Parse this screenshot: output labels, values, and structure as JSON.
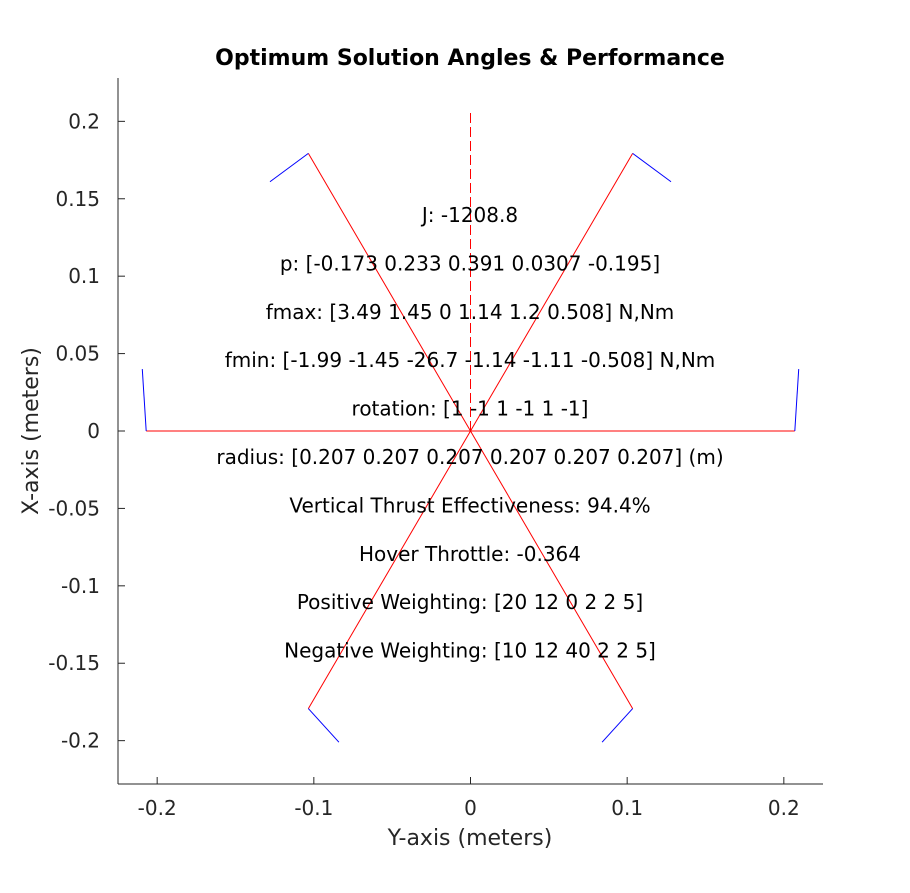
{
  "chart_data": {
    "type": "line",
    "title": "Optimum Solution Angles & Performance",
    "xlabel": "Y-axis (meters)",
    "ylabel": "X-axis (meters)",
    "xlim": [
      -0.225,
      0.225
    ],
    "ylim": [
      -0.228,
      0.228
    ],
    "xticks": [
      -0.2,
      -0.1,
      0,
      0.1,
      0.2
    ],
    "xtick_labels": [
      "-0.2",
      "-0.1",
      "0",
      "0.1",
      "0.2"
    ],
    "yticks": [
      0.2,
      0.15,
      0.1,
      0.05,
      0,
      -0.05,
      -0.1,
      -0.15,
      -0.2
    ],
    "ytick_labels": [
      "0.2",
      "0.15",
      "0.1",
      "0.05",
      "0",
      "-0.05",
      "-0.1",
      "-0.15",
      "-0.2"
    ],
    "grid": false,
    "colors": {
      "arm": "#ff0000",
      "thrust": "#0000ff",
      "axis": "#262626"
    },
    "arms": [
      {
        "x": [
          0,
          0.207
        ],
        "y": [
          0,
          0
        ]
      },
      {
        "x": [
          0,
          0.1035
        ],
        "y": [
          0,
          0.1793
        ]
      },
      {
        "x": [
          0,
          -0.1035
        ],
        "y": [
          0,
          0.1793
        ]
      },
      {
        "x": [
          0,
          -0.207
        ],
        "y": [
          0,
          0
        ]
      },
      {
        "x": [
          0,
          -0.1035
        ],
        "y": [
          0,
          -0.1793
        ]
      },
      {
        "x": [
          0,
          0.1035
        ],
        "y": [
          0,
          -0.1793
        ]
      }
    ],
    "thrust_vectors": [
      {
        "x": [
          0.207,
          0.2095
        ],
        "y": [
          0,
          0.04
        ]
      },
      {
        "x": [
          0.1035,
          0.128
        ],
        "y": [
          0.1793,
          0.161
        ]
      },
      {
        "x": [
          -0.1035,
          -0.128
        ],
        "y": [
          0.1793,
          0.161
        ]
      },
      {
        "x": [
          -0.207,
          -0.2095
        ],
        "y": [
          0,
          0.04
        ]
      },
      {
        "x": [
          -0.1035,
          -0.084
        ],
        "y": [
          -0.1793,
          -0.201
        ]
      },
      {
        "x": [
          0.1035,
          0.084
        ],
        "y": [
          -0.1793,
          -0.201
        ]
      }
    ],
    "heading": {
      "x": [
        0,
        0
      ],
      "y": [
        0,
        0.207
      ]
    },
    "annotations": [
      "J: -1208.8",
      "p: [-0.173 0.233 0.391 0.0307 -0.195]",
      "fmax: [3.49 1.45 0 1.14 1.2 0.508] N,Nm",
      "fmin: [-1.99 -1.45 -26.7 -1.14 -1.11 -0.508] N,Nm",
      "rotation: [1 -1 1 -1 1 -1]",
      "radius: [0.207 0.207 0.207 0.207 0.207 0.207] (m)",
      "Vertical Thrust Effectiveness: 94.4%",
      "Hover Throttle: -0.364",
      "Positive Weighting: [20 12 0 2 2 5]",
      "Negative Weighting: [10 12 40 2 2 5]"
    ]
  }
}
